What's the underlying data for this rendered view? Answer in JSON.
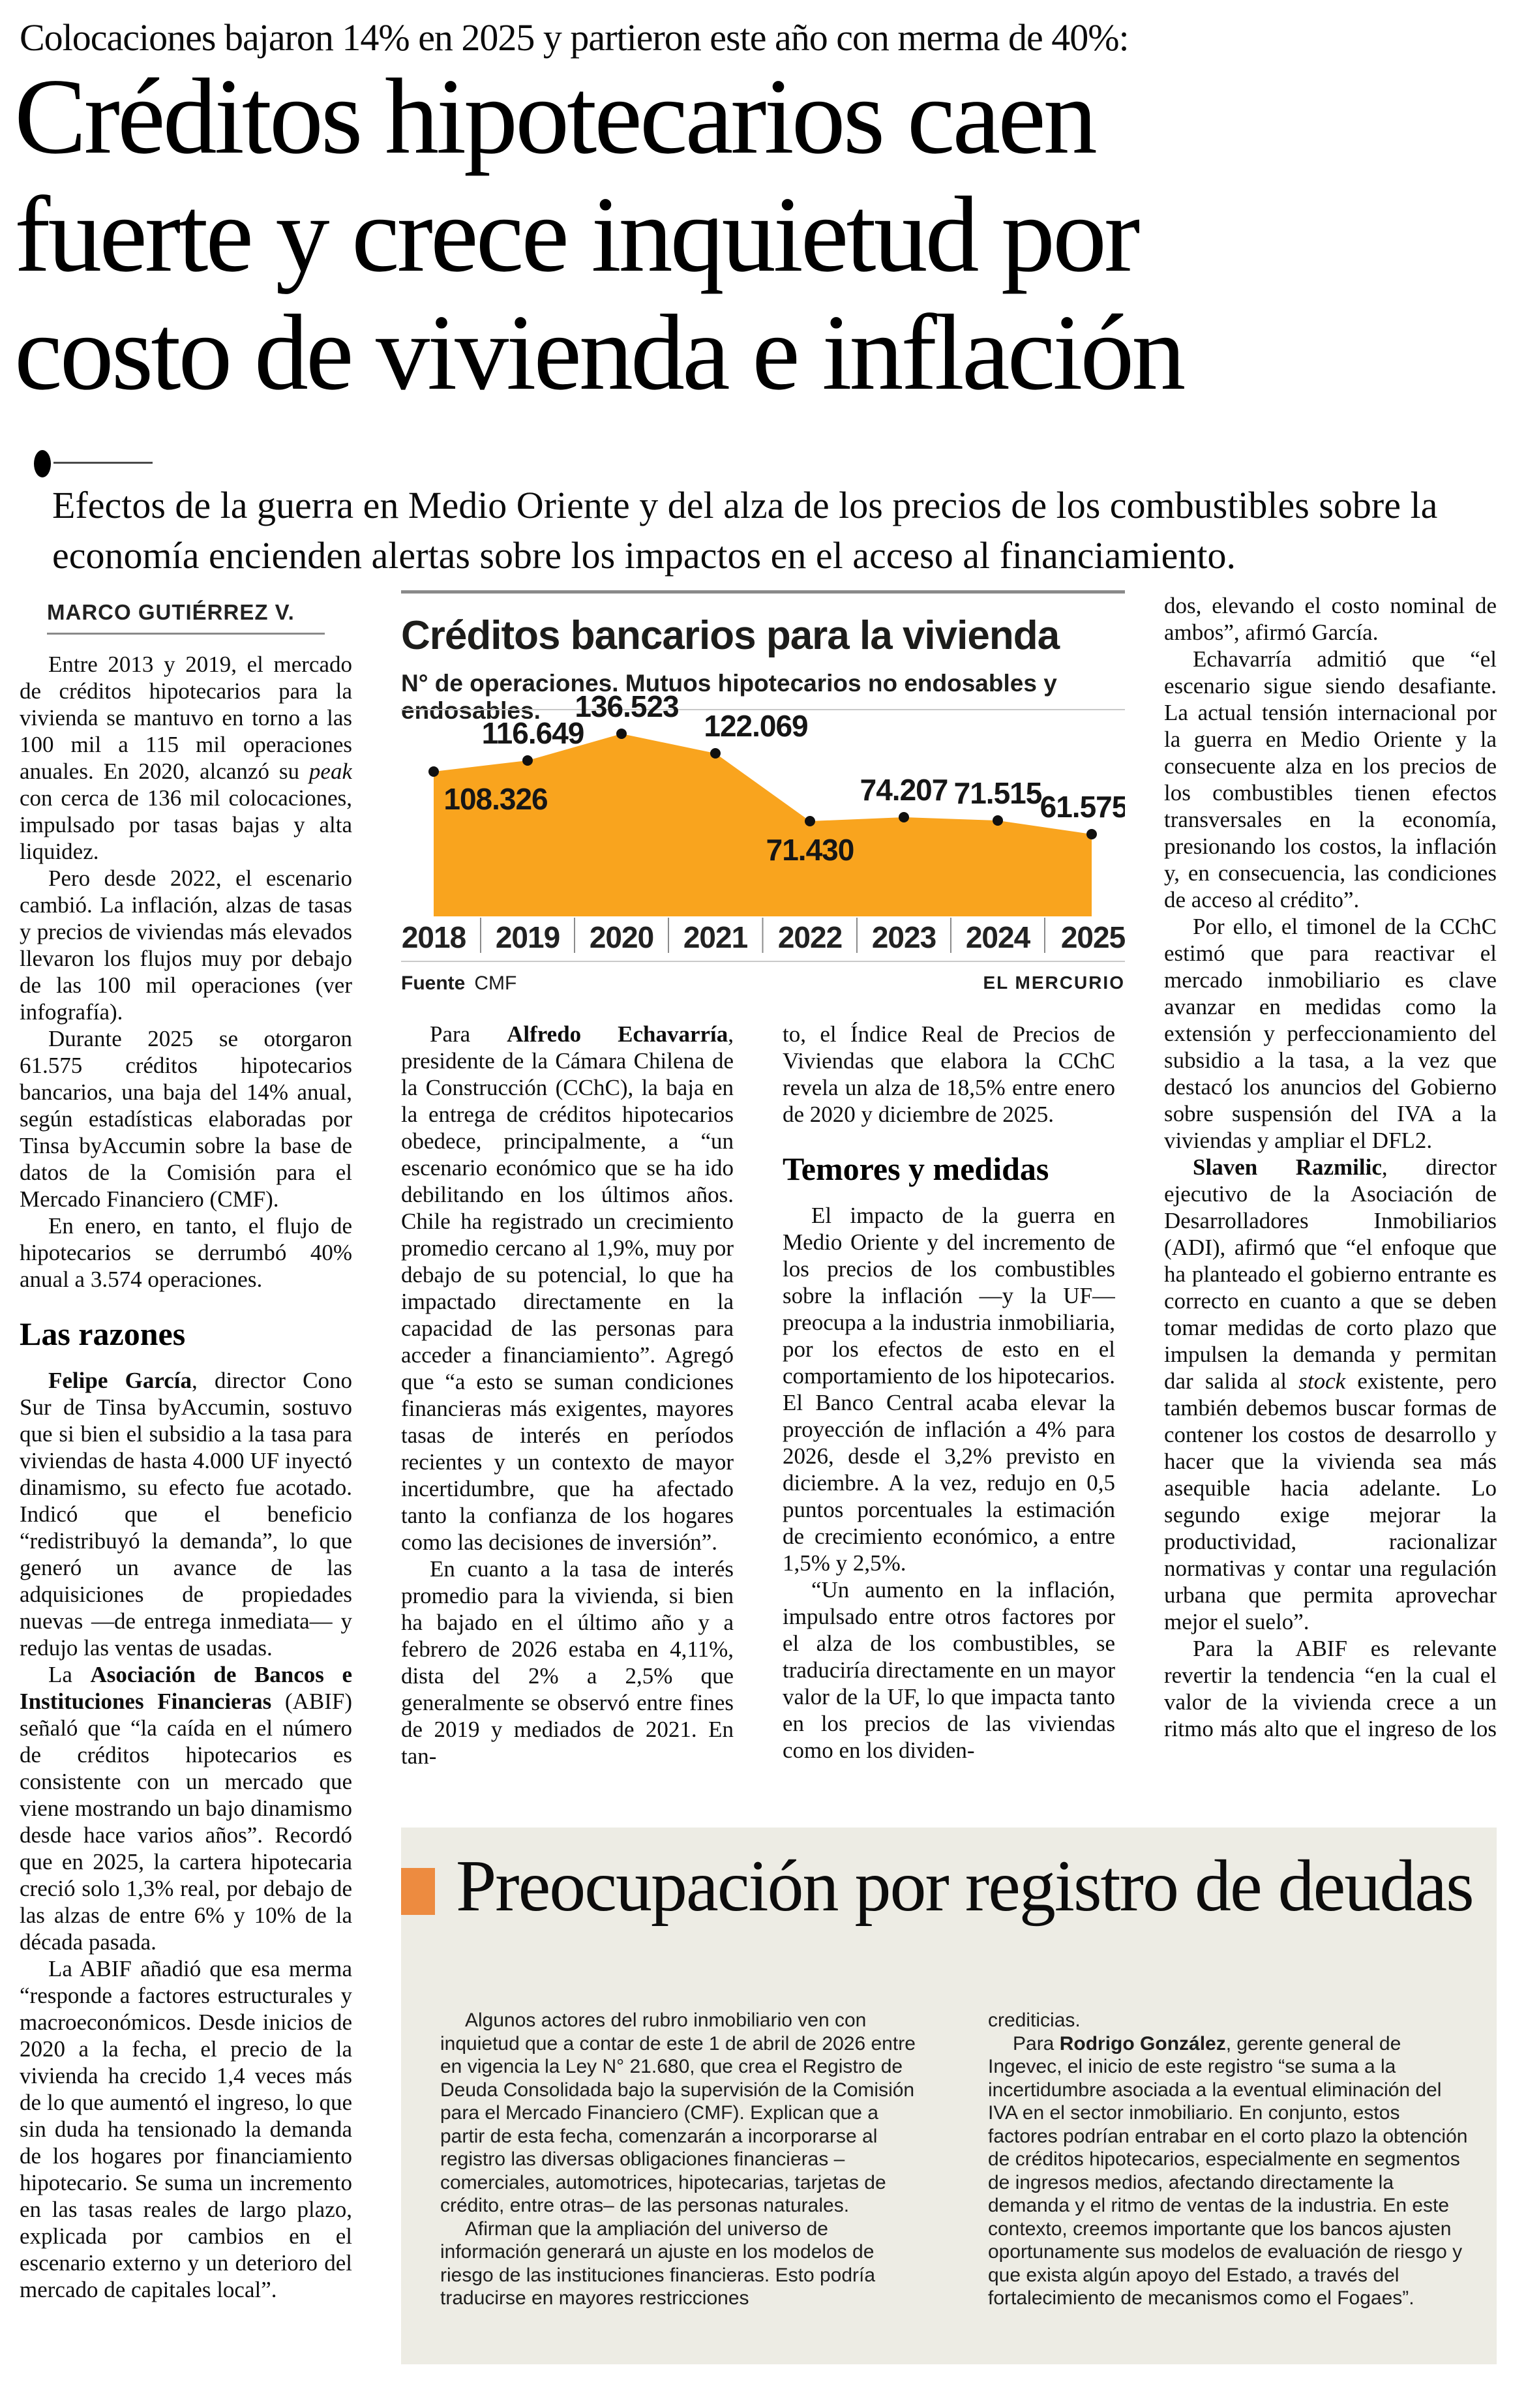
{
  "kicker": "Colocaciones bajaron 14% en 2025 y partieron este año con merma de 40%:",
  "headline": {
    "lines": [
      "Créditos hipotecarios caen",
      "fuerte y crece inquietud por",
      "costo de vivienda e inflación"
    ]
  },
  "deck": "Efectos de la guerra en Medio Oriente y del alza de los precios de los combustibles sobre la economía encienden alertas sobre los impactos en el acceso al financiamiento.",
  "byline": "MARCO GUTIÉRREZ V.",
  "article": {
    "col1": [
      {
        "p": [
          {
            "t": "Entre 2013 y 2019, el mercado de créditos hipotecarios para la vivienda se mantuvo en torno a las 100 mil a 115 mil operaciones anuales. En 2020, alcanzó su "
          },
          {
            "t": "peak",
            "i": 1
          },
          {
            "t": " con cerca de 136 mil colocaciones, impulsado por tasas bajas y alta liquidez."
          }
        ]
      },
      {
        "p": [
          {
            "t": "Pero desde 2022, el escenario cambió. La inflación, alzas de tasas y precios de viviendas más elevados llevaron los flujos muy por debajo de las 100 mil operaciones (ver infografía)."
          }
        ]
      },
      {
        "p": [
          {
            "t": "Durante 2025 se otorgaron 61.575 créditos hipotecarios bancarios, una baja del 14% anual, según estadísticas elaboradas por Tinsa byAccumin sobre la base de datos de la Comisión para el Mercado Financiero (CMF)."
          }
        ]
      },
      {
        "p": [
          {
            "t": "En enero, en tanto, el flujo de hipotecarios se derrumbó 40% anual a 3.574 operaciones."
          }
        ]
      },
      {
        "h": "Las razones"
      },
      {
        "p": [
          {
            "t": "Felipe García",
            "b": 1
          },
          {
            "t": ", director Cono Sur de Tinsa byAccumin, sostuvo que si bien el subsidio a la tasa para viviendas de hasta 4.000 UF inyectó dinamismo, su efecto fue acotado. Indicó que el beneficio “redistribuyó la demanda”, lo que generó un avance de las adquisiciones de propiedades nuevas —de entrega inmediata— y redujo las ventas de usadas."
          }
        ]
      },
      {
        "p": [
          {
            "t": "La "
          },
          {
            "t": "Asociación de Bancos e Instituciones Financieras",
            "b": 1
          },
          {
            "t": " (ABIF) señaló que “la caída en el número de créditos hipotecarios es consistente con un mercado que viene mostrando un bajo dinamismo desde hace varios años”. Recordó que en 2025, la cartera hipotecaria creció solo 1,3% real, por debajo de las alzas de entre 6% y 10% de la década pasada."
          }
        ]
      },
      {
        "p": [
          {
            "t": "La ABIF añadió que esa merma “responde a factores estructurales y macroeconómicos. Desde inicios de 2020 a la fecha, el precio de la vivienda ha crecido 1,4 veces más de lo que aumentó el ingreso, lo que sin duda ha tensionado la demanda de los hogares por financiamiento hipotecario. Se suma un incremento en las tasas reales de largo plazo, explicada por cambios en el escenario externo y un deterioro del mercado de capitales local”."
          }
        ]
      }
    ],
    "col2": [
      {
        "p": [
          {
            "t": "Para "
          },
          {
            "t": "Alfredo Echavarría",
            "b": 1
          },
          {
            "t": ", presidente de la Cámara Chilena de la Construcción (CChC), la baja en la entrega de créditos hipotecarios obedece, principalmente, a “un escenario económico que se ha ido debilitando en los últimos años. Chile ha registrado un crecimiento promedio cercano al 1,9%, muy por debajo de su potencial, lo que ha impactado directamente en la capacidad de las personas para acceder a financiamiento”. Agregó que “a esto se suman condiciones financieras más exigentes, mayores tasas de interés en períodos recientes y un contexto de mayor incertidumbre, que ha afectado tanto la confianza de los hogares como las decisiones de inversión”."
          }
        ]
      },
      {
        "p": [
          {
            "t": "En cuanto a la tasa de interés promedio para la vivienda, si bien ha bajado en el último año y a febrero de 2026 estaba en 4,11%, dista del 2% a 2,5% que generalmente se observó entre fines de 2019 y mediados de 2021. En tan-"
          }
        ]
      }
    ],
    "col3": [
      {
        "p": [
          {
            "t": "to, el Índice Real de Precios de Viviendas que elabora la CChC revela un alza de 18,5% entre enero de 2020 y diciembre de 2025."
          }
        ],
        "flush": true
      },
      {
        "h": "Temores y medidas"
      },
      {
        "p": [
          {
            "t": "El impacto de la guerra en Medio Oriente y del incremento de los precios de los combustibles sobre la inflación —y la UF— preocupa a la industria inmobiliaria, por los efectos de esto en el comportamiento de los hipotecarios. El Banco Central acaba elevar la proyección de inflación a 4% para 2026, desde el 3,2% previsto en diciembre. A la vez, redujo en 0,5 puntos porcentuales la estimación de crecimiento económico, a entre 1,5% y 2,5%."
          }
        ]
      },
      {
        "p": [
          {
            "t": "“Un aumento en la inflación, impulsado entre otros factores por el alza de los combustibles, se traduciría directamente en un mayor valor de la UF, lo que impacta tanto en los precios de las viviendas como en los dividen-"
          }
        ]
      }
    ],
    "col4": [
      {
        "p": [
          {
            "t": "dos, elevando el costo nominal de ambos”, afirmó García."
          }
        ],
        "flush": true
      },
      {
        "p": [
          {
            "t": "Echavarría admitió que “el escenario sigue siendo desafiante. La actual tensión internacional por la guerra en Medio Oriente y la consecuente alza en los precios de los combustibles tienen efectos transversales en la economía, presionando los costos, la inflación y, en consecuencia, las condiciones de acceso al crédito”."
          }
        ]
      },
      {
        "p": [
          {
            "t": "Por ello, el timonel de la CChC estimó que para reactivar el mercado inmobiliario es clave avanzar en medidas como la extensión y perfeccionamiento del subsidio a la tasa, a la vez que destacó los anuncios del Gobierno sobre suspensión del IVA a la viviendas y ampliar el DFL2."
          }
        ]
      },
      {
        "p": [
          {
            "t": "Slaven Razmilic",
            "b": 1
          },
          {
            "t": ", director ejecutivo de la Asociación de Desarrolladores Inmobiliarios (ADI), afirmó que “el enfoque que ha planteado el gobierno entrante es correcto en cuanto a que se deben tomar medidas de corto plazo que impulsen la demanda y permitan dar salida al "
          },
          {
            "t": "stock",
            "i": 1
          },
          {
            "t": " existente, pero también debemos buscar formas de contener los costos de desarrollo y hacer que la vivienda sea más asequible hacia adelante. Lo segundo exige mejorar la productividad, racionalizar normativas y contar una regulación urbana que permita aprovechar mejor el suelo”."
          }
        ]
      },
      {
        "p": [
          {
            "t": "Para la ABIF es relevante revertir la tendencia “en la cual el valor de la vivienda crece a un ritmo más alto que el ingreso de los hogares”."
          }
        ]
      }
    ]
  },
  "chart_data": {
    "type": "area",
    "title": "Créditos bancarios para la vivienda",
    "subtitle": "N° de operaciones. Mutuos hipotecarios no endosables y endosables.",
    "categories": [
      "2018",
      "2019",
      "2020",
      "2021",
      "2022",
      "2023",
      "2024",
      "2025"
    ],
    "values": [
      108326,
      116649,
      136523,
      122069,
      71430,
      74207,
      71515,
      61575
    ],
    "value_labels": [
      "108.326",
      "116.649",
      "136.523",
      "122.069",
      "71.430",
      "74.207",
      "71.515",
      "61.575"
    ],
    "ylim": [
      0,
      140000
    ],
    "xlabel": "",
    "ylabel": "N° de operaciones",
    "grid": false,
    "legend": "none",
    "area_color": "#F9A41E",
    "dot_color": "#101010",
    "source_label": "Fuente",
    "source": "CMF",
    "credit": "EL MERCURIO"
  },
  "box": {
    "title": "Preocupación por registro de deudas",
    "bg": "#EDECE4",
    "marker_color": "#ED8B40",
    "col_left": [
      {
        "p": [
          {
            "t": "Algunos actores del rubro inmobiliario ven con inquietud que a contar de este 1 de abril de 2026 entre en vigencia la Ley N° 21.680, que crea el Registro de Deuda Consolidada bajo la supervisión de la Comisión para el Mercado Financiero (CMF). Explican que a partir de esta fecha, comenzarán a incorporarse al registro las diversas obligaciones financieras –comerciales, automotrices, hipotecarias, tarjetas de crédito, entre otras– de las personas naturales."
          }
        ]
      },
      {
        "p": [
          {
            "t": "Afirman que la ampliación del universo de información generará un ajuste en los modelos de riesgo de las instituciones financieras. Esto podría traducirse en mayores restricciones"
          }
        ]
      }
    ],
    "col_right": [
      {
        "p": [
          {
            "t": "crediticias."
          }
        ],
        "flush": true
      },
      {
        "p": [
          {
            "t": "Para "
          },
          {
            "t": "Rodrigo González",
            "b": 1
          },
          {
            "t": ", gerente general de Ingevec, el inicio de este registro “se suma a la incertidumbre asociada a la eventual eliminación del IVA en el sector inmobiliario. En conjunto, estos factores podrían entrabar en el corto plazo la obtención de créditos hipotecarios, especialmente en segmentos de ingresos medios, afectando directamente la demanda y el ritmo de ventas de la industria. En este contexto, creemos importante que los bancos ajusten oportunamente sus modelos de evaluación de riesgo y que exista algún apoyo del Estado, a través del fortalecimiento de mecanismos como el Fogaes”."
          }
        ]
      }
    ]
  }
}
